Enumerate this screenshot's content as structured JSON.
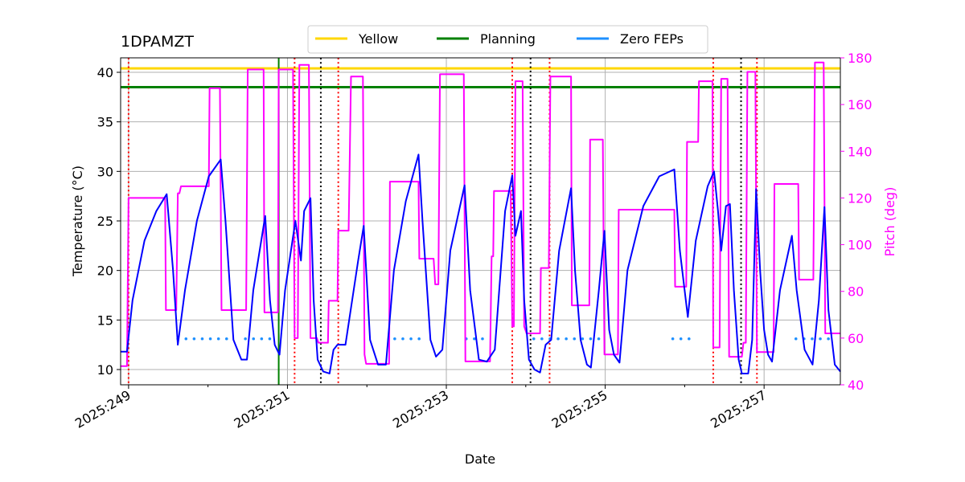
{
  "chart_data": {
    "type": "line",
    "title": "1DPAMZT",
    "xlabel": "Date",
    "ylabel": "Temperature (°C)",
    "y2label": "Pitch (deg)",
    "y2color": "#ff00ff",
    "grid": true,
    "legend": "top",
    "xlim": [
      248.9,
      257.96
    ],
    "xticks": [
      {
        "value": 249,
        "label": "2025:249"
      },
      {
        "value": 251,
        "label": "2025:251"
      },
      {
        "value": 253,
        "label": "2025:253"
      },
      {
        "value": 255,
        "label": "2025:255"
      },
      {
        "value": 257,
        "label": "2025:257"
      }
    ],
    "xminorticks": [
      250,
      252,
      254,
      256
    ],
    "ylim": [
      8.46,
      41.46
    ],
    "yticks": [
      10,
      15,
      20,
      25,
      30,
      35,
      40
    ],
    "y2lim": [
      40,
      180
    ],
    "y2ticks": [
      40,
      60,
      80,
      100,
      120,
      140,
      160,
      180
    ],
    "hlines": [
      {
        "name": "Yellow",
        "color": "#ffd700",
        "value": 40.4
      },
      {
        "name": "Planning",
        "color": "#008000",
        "value": 38.5
      }
    ],
    "vlines": [
      {
        "color": "#008000",
        "style": "solid",
        "values": [
          250.89
        ]
      },
      {
        "color": "#ff0000",
        "style": "dotted",
        "values": [
          249.0,
          251.09,
          251.64,
          253.83,
          254.3,
          256.36,
          256.91
        ]
      },
      {
        "color": "#000000",
        "style": "dotted",
        "values": [
          251.42,
          254.06,
          256.71
        ]
      }
    ],
    "series": [
      {
        "name": "Zero FEPs",
        "color": "#1e90ff",
        "style": "dotted",
        "x": [
          249.62,
          250.32,
          null,
          250.47,
          250.87,
          null,
          252.35,
          252.7,
          null,
          253.25,
          253.55,
          null,
          254.1,
          254.95,
          null,
          255.85,
          256.15,
          null,
          257.4,
          257.9
        ],
        "values": [
          13.1,
          13.1,
          null,
          13.1,
          13.1,
          null,
          13.1,
          13.1,
          null,
          13.1,
          13.1,
          null,
          13.1,
          13.1,
          null,
          13.1,
          13.1,
          null,
          13.1,
          13.1
        ]
      }
    ],
    "temperature": {
      "color": "#0000ff",
      "x": [
        248.9,
        248.98,
        249.05,
        249.2,
        249.35,
        249.48,
        249.56,
        249.62,
        249.71,
        249.86,
        250.01,
        250.16,
        250.22,
        250.32,
        250.42,
        250.49,
        250.57,
        250.72,
        250.78,
        250.84,
        250.9,
        250.97,
        251.1,
        251.17,
        251.21,
        251.29,
        251.33,
        251.38,
        251.45,
        251.53,
        251.58,
        251.63,
        251.73,
        251.89,
        251.96,
        252.04,
        252.14,
        252.24,
        252.34,
        252.49,
        252.65,
        252.7,
        252.8,
        252.87,
        252.95,
        253.05,
        253.23,
        253.3,
        253.41,
        253.51,
        253.61,
        253.74,
        253.83,
        253.87,
        253.94,
        253.98,
        254.04,
        254.11,
        254.18,
        254.25,
        254.32,
        254.42,
        254.57,
        254.62,
        254.69,
        254.77,
        254.82,
        254.92,
        254.99,
        255.05,
        255.11,
        255.18,
        255.28,
        255.48,
        255.68,
        255.87,
        255.94,
        256.04,
        256.14,
        256.29,
        256.37,
        256.42,
        256.46,
        256.52,
        256.57,
        256.62,
        256.68,
        256.72,
        256.8,
        256.85,
        256.9,
        256.95,
        257.0,
        257.05,
        257.1,
        257.2,
        257.35,
        257.41,
        257.51,
        257.61,
        257.69,
        257.76,
        257.81,
        257.89,
        257.96
      ],
      "values": [
        11.8,
        11.8,
        17,
        23,
        26,
        27.7,
        20,
        12.5,
        18,
        25,
        29.5,
        31.2,
        25,
        13,
        11,
        11,
        18,
        25.5,
        17,
        12.5,
        11.5,
        18,
        25,
        21,
        26,
        27.3,
        17,
        11,
        9.8,
        9.6,
        12,
        12.5,
        12.5,
        21,
        24.5,
        13,
        10.5,
        10.5,
        20,
        27,
        31.7,
        25,
        13,
        11.3,
        12,
        22,
        28.6,
        18,
        11,
        10.8,
        12,
        26,
        29.6,
        23.5,
        26,
        17,
        11,
        10,
        9.7,
        12.5,
        13,
        22,
        28.3,
        20,
        13,
        10.5,
        10.2,
        18,
        24,
        14,
        11.5,
        10.7,
        20,
        26.5,
        29.5,
        30.2,
        22,
        15.3,
        23,
        28.5,
        30,
        26,
        22,
        26.5,
        26.7,
        18,
        11,
        9.6,
        9.6,
        13,
        28.2,
        20,
        14,
        11.5,
        10.8,
        18,
        23.5,
        18,
        12,
        10.5,
        17,
        26.4,
        16,
        10.5,
        9.8
      ]
    },
    "pitch": {
      "color": "#ff00ff",
      "axis": "y2",
      "x": [
        248.9,
        248.98,
        249.0,
        249.46,
        249.47,
        249.6,
        249.62,
        249.64,
        249.66,
        250.01,
        250.02,
        250.15,
        250.17,
        250.48,
        250.5,
        250.7,
        250.71,
        250.88,
        250.89,
        251.07,
        251.09,
        251.13,
        251.15,
        251.27,
        251.29,
        251.37,
        251.39,
        251.51,
        251.52,
        251.63,
        251.64,
        251.77,
        251.8,
        251.95,
        251.97,
        251.99,
        252.28,
        252.29,
        252.65,
        252.66,
        252.84,
        252.86,
        252.9,
        252.92,
        253.22,
        253.24,
        253.55,
        253.57,
        253.59,
        253.6,
        253.81,
        253.83,
        253.85,
        253.87,
        253.96,
        253.98,
        254.01,
        254.18,
        254.19,
        254.29,
        254.31,
        254.57,
        254.58,
        254.8,
        254.81,
        254.95,
        254.97,
        254.99,
        255.16,
        255.17,
        255.87,
        255.88,
        256.02,
        256.03,
        256.17,
        256.18,
        256.35,
        256.36,
        256.44,
        256.46,
        256.54,
        256.56,
        256.72,
        256.74,
        256.77,
        256.79,
        256.89,
        256.91,
        257.12,
        257.13,
        257.43,
        257.44,
        257.62,
        257.64,
        257.75,
        257.77,
        257.96
      ],
      "values": [
        48,
        48,
        120,
        120,
        72,
        72,
        122,
        122,
        125,
        125,
        167,
        167,
        72,
        72,
        175,
        175,
        71,
        71,
        175,
        175,
        60,
        60,
        177,
        177,
        60,
        60,
        58,
        58,
        76,
        76,
        106,
        106,
        172,
        172,
        53,
        49,
        49,
        127,
        127,
        94,
        94,
        83,
        83,
        173,
        173,
        50,
        50,
        95,
        95,
        123,
        123,
        65,
        65,
        170,
        170,
        65,
        62,
        62,
        90,
        90,
        172,
        172,
        74,
        74,
        145,
        145,
        145,
        53,
        53,
        115,
        115,
        82,
        82,
        144,
        144,
        170,
        170,
        56,
        56,
        171,
        171,
        52,
        52,
        58,
        58,
        174,
        174,
        54,
        54,
        126,
        126,
        85,
        85,
        178,
        178,
        62,
        62
      ]
    }
  }
}
